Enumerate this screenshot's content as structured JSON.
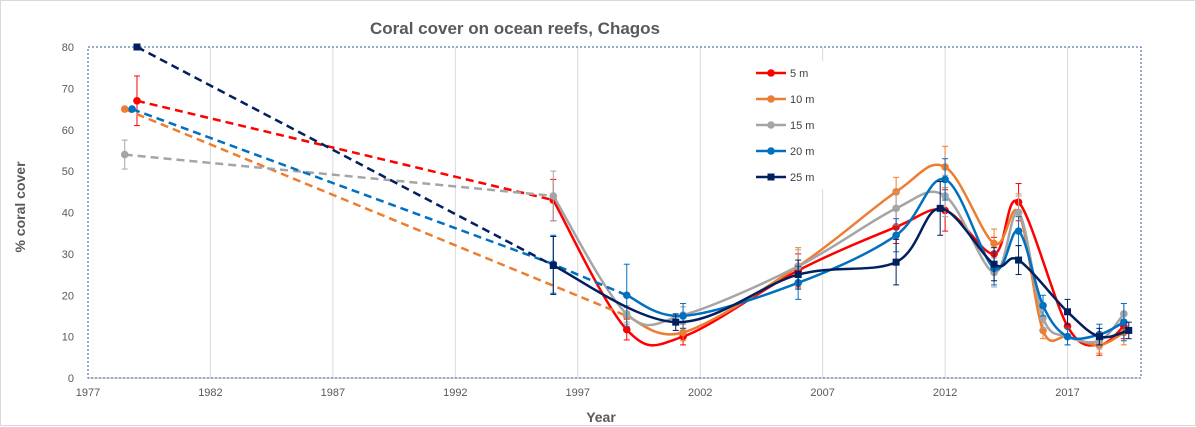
{
  "chart_data": {
    "type": "line",
    "title": "Coral cover on ocean reefs, Chagos",
    "xlabel": "Year",
    "ylabel": "% coral cover",
    "xlim": [
      1977,
      2020
    ],
    "ylim": [
      0,
      80
    ],
    "xticks": [
      1977,
      1982,
      1987,
      1992,
      1997,
      2002,
      2007,
      2012,
      2017
    ],
    "yticks": [
      0,
      10,
      20,
      30,
      40,
      50,
      60,
      70,
      80
    ],
    "grid": "vertical",
    "legend": "top-right",
    "series": [
      {
        "name": "5 m",
        "color": "#ff0000",
        "marker": "circle",
        "x": [
          1979,
          1996,
          1999,
          2001.3,
          2006,
          2010,
          2012,
          2014,
          2015,
          2017,
          2018.3,
          2019.3
        ],
        "y": [
          67,
          43,
          11.7,
          10,
          26,
          36.5,
          40.5,
          30,
          42.5,
          12.5,
          8,
          12.5
        ],
        "err": [
          6,
          5,
          2.5,
          2,
          4,
          4,
          5,
          4,
          4.5,
          3,
          2.5,
          3
        ],
        "dashed_until": 1996
      },
      {
        "name": "10 m",
        "color": "#ed7d31",
        "marker": "circle",
        "x": [
          1978.5,
          1999,
          2001.3,
          2006,
          2010,
          2012,
          2014,
          2015,
          2016,
          2017,
          2018.3,
          2019.3
        ],
        "y": [
          65,
          15,
          11,
          27,
          45,
          51,
          32.5,
          40,
          11.5,
          10,
          8,
          11
        ],
        "err": [
          0,
          2,
          2,
          4.5,
          3.5,
          5,
          3.5,
          4.5,
          2,
          2,
          2,
          3
        ],
        "dashed_until": 1999
      },
      {
        "name": "15 m",
        "color": "#a5a5a5",
        "marker": "circle",
        "x": [
          1978.5,
          1996,
          1999,
          2001.3,
          2006,
          2010,
          2012,
          2014,
          2015,
          2016,
          2017,
          2018.3,
          2019.3
        ],
        "y": [
          54,
          44,
          15.5,
          15.2,
          27,
          41,
          44,
          25.5,
          40,
          14.5,
          10,
          9,
          15.5
        ],
        "err": [
          3.5,
          6,
          2,
          2,
          4,
          4,
          5,
          3.5,
          4,
          2.5,
          2,
          2,
          2.5
        ],
        "dashed_until": 1996
      },
      {
        "name": "20 m",
        "color": "#0070c0",
        "marker": "circle",
        "x": [
          1978.8,
          1996,
          1999,
          2001.3,
          2006,
          2010,
          2012,
          2014,
          2015,
          2016,
          2017,
          2018.3,
          2019.3
        ],
        "y": [
          65,
          27.5,
          20,
          15,
          23,
          34.5,
          48,
          26.5,
          35.5,
          17.5,
          10,
          10.5,
          13.5
        ],
        "err": [
          0,
          7,
          7.5,
          3,
          4,
          4,
          5,
          4,
          3.5,
          2.5,
          2,
          2.5,
          4.5
        ],
        "dashed_until": 1999
      },
      {
        "name": "25 m",
        "color": "#002060",
        "marker": "square",
        "x": [
          1979,
          1996,
          2001,
          2006,
          2010,
          2011.8,
          2014,
          2015,
          2017,
          2018.3,
          2019.5
        ],
        "y": [
          80,
          27.2,
          13.5,
          25,
          28,
          41,
          27.5,
          28.5,
          16,
          10,
          11.5
        ],
        "err": [
          0,
          7,
          2,
          3.5,
          5.5,
          6.5,
          4,
          3.5,
          3,
          2,
          2
        ],
        "dashed_until": 1996
      }
    ]
  }
}
